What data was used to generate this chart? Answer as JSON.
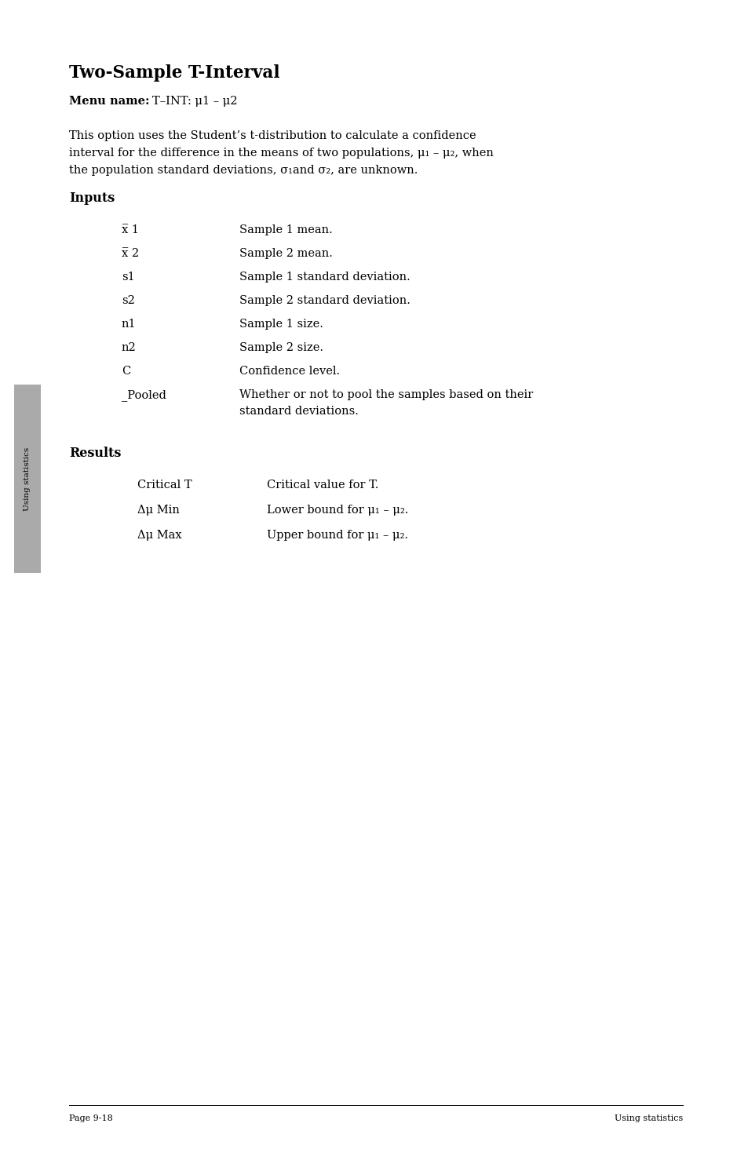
{
  "title": "Two-Sample T-Interval",
  "menu_name_label": "Menu name:",
  "menu_name_value": "T–INT: μ1 – μ2",
  "body_line1": "This option uses the Student’s t-distribution to calculate a confidence",
  "body_line2": "interval for the difference in the means of two populations, μ₁ – μ₂, when",
  "body_line3": "the population standard deviations, σ₁and σ₂, are unknown.",
  "inputs_heading": "Inputs",
  "inputs": [
    [
      "x̅ 1",
      "Sample 1 mean."
    ],
    [
      "x̅ 2",
      "Sample 2 mean."
    ],
    [
      "s1",
      "Sample 1 standard deviation."
    ],
    [
      "s2",
      "Sample 2 standard deviation."
    ],
    [
      "n1",
      "Sample 1 size."
    ],
    [
      "n2",
      "Sample 2 size."
    ],
    [
      "C",
      "Confidence level."
    ],
    [
      "_Pooled",
      "Whether or not to pool the samples based on their",
      "standard deviations."
    ]
  ],
  "results_heading": "Results",
  "results": [
    [
      "Critical T",
      "Critical value for T."
    ],
    [
      "Δμ Min",
      "Lower bound for μ₁ – μ₂."
    ],
    [
      "Δμ Max",
      "Upper bound for μ₁ – μ₂."
    ]
  ],
  "footer_left": "Page 9-18",
  "footer_right": "Using statistics",
  "sidebar_text": "Using statistics",
  "bg_color": "#ffffff",
  "text_color": "#000000"
}
